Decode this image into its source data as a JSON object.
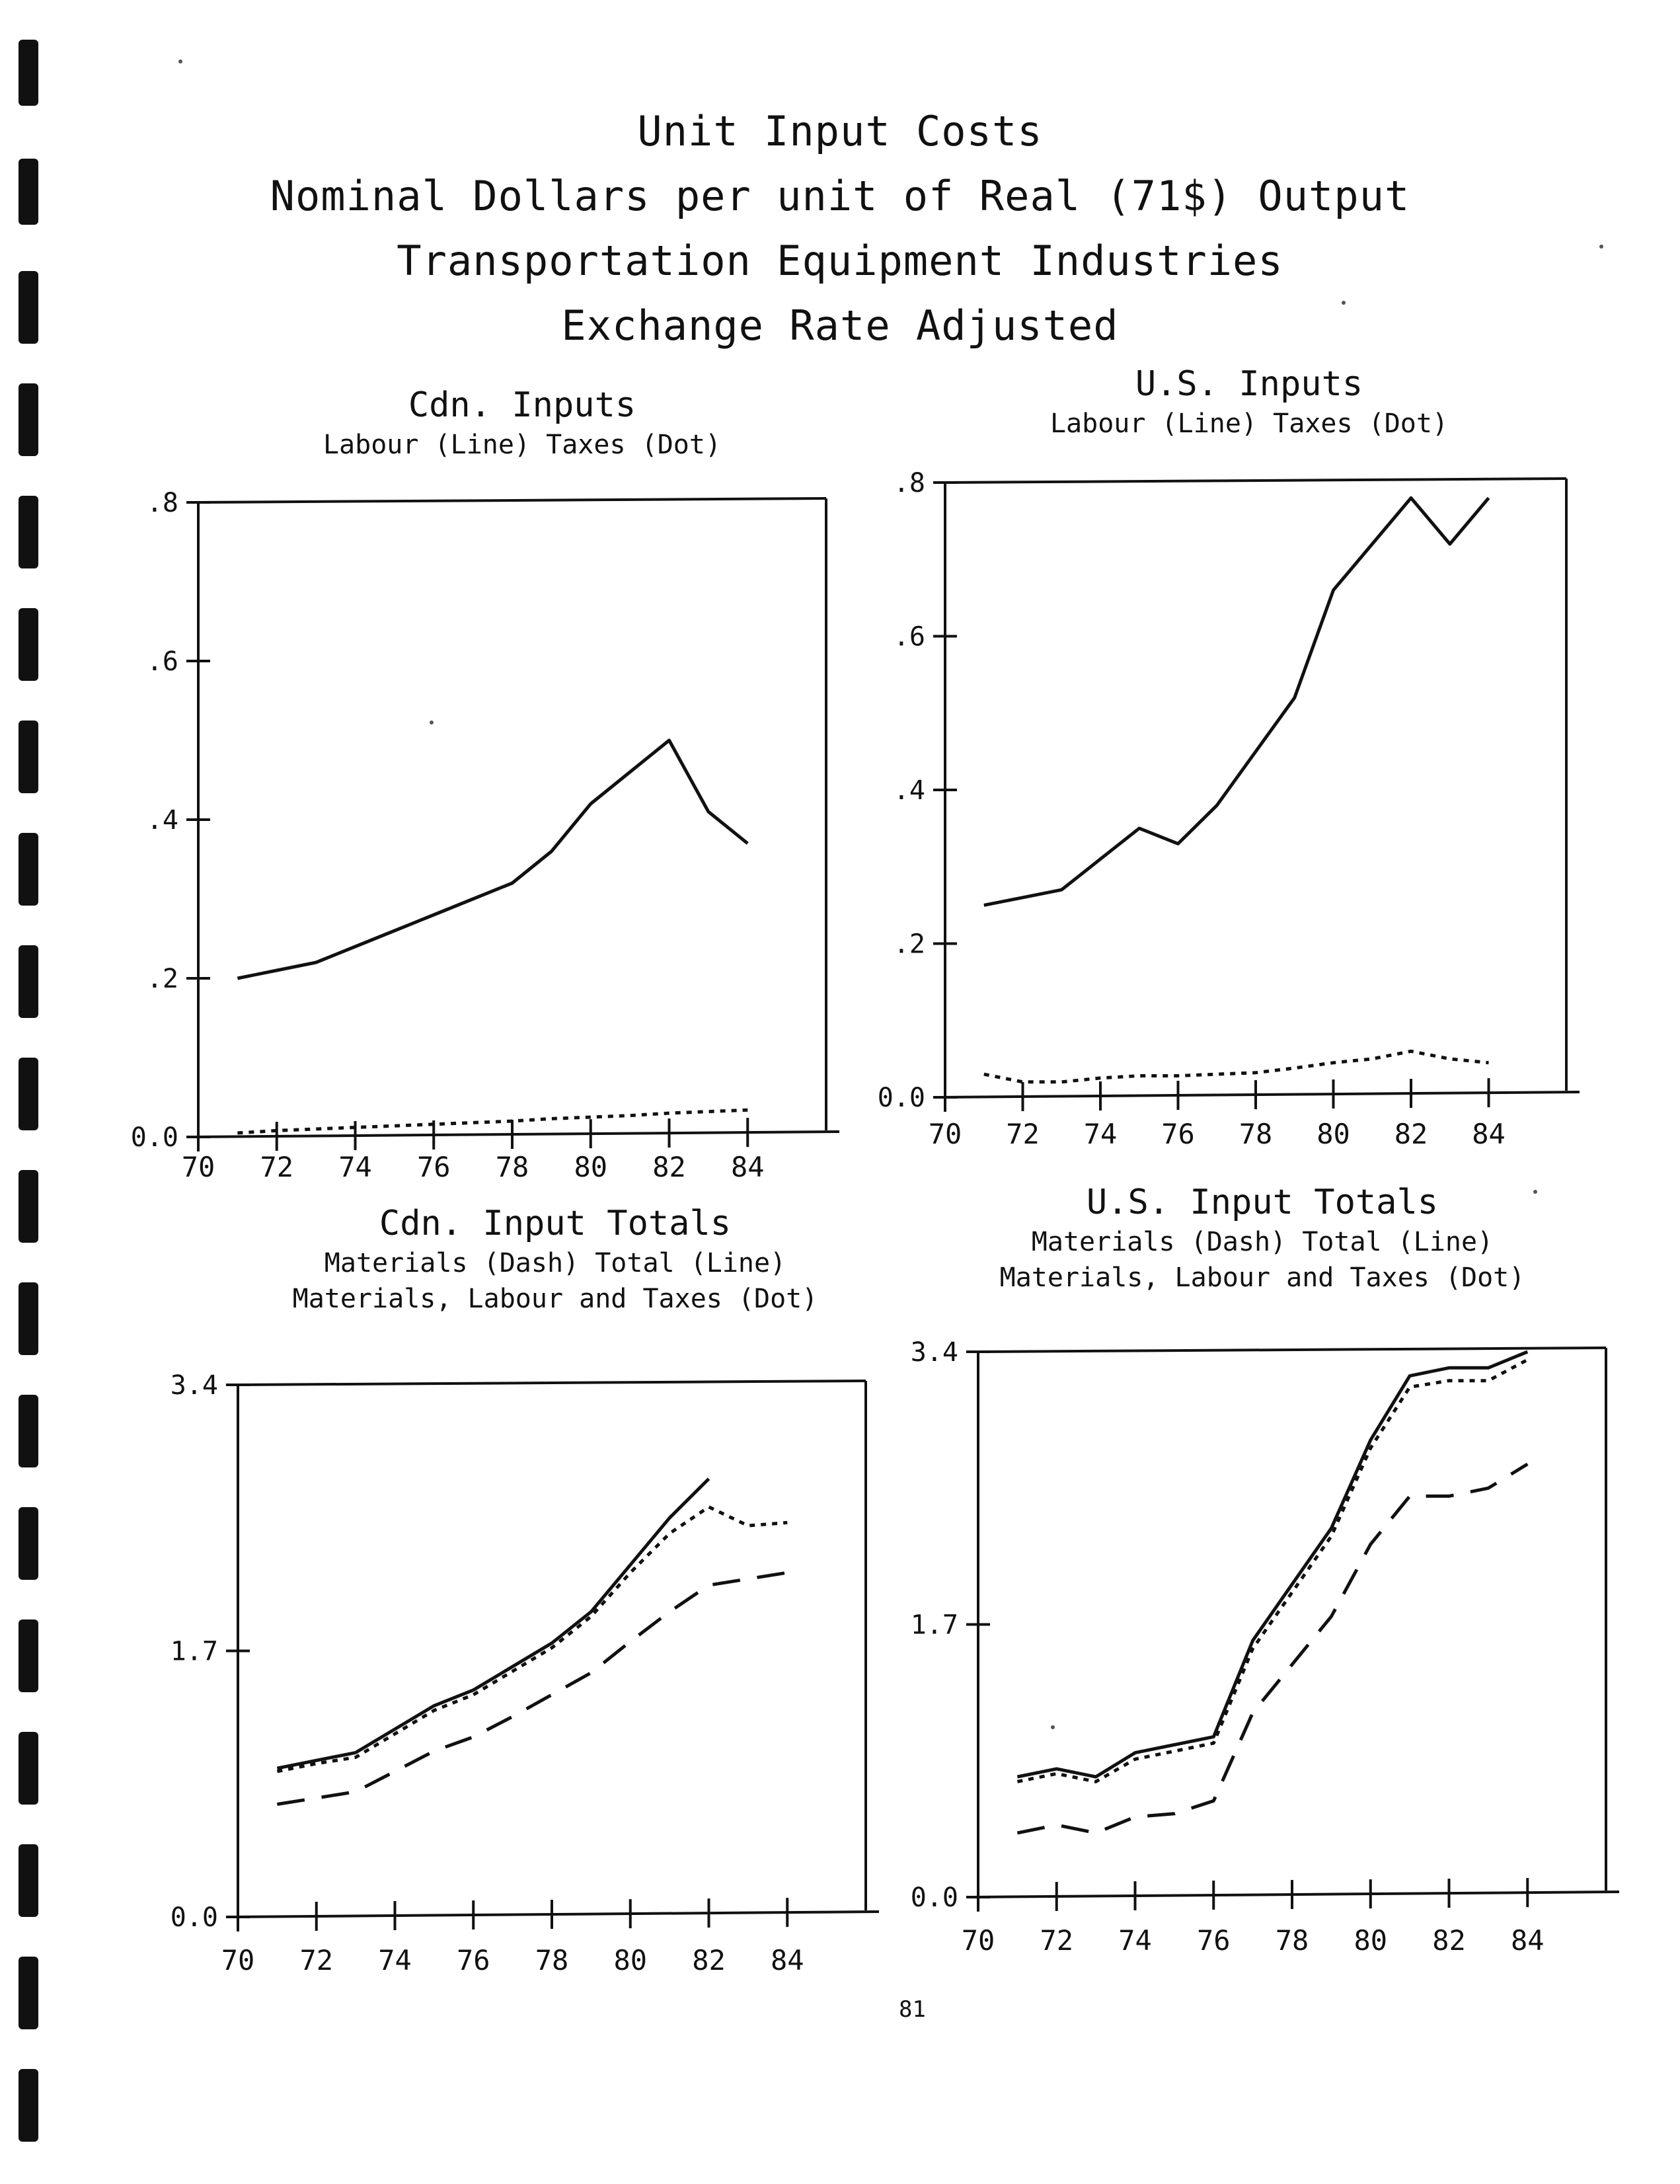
{
  "page": {
    "title_lines": [
      "Unit Input Costs",
      "Nominal Dollars per unit of Real (71$) Output",
      "Transportation Equipment Industries",
      "Exchange Rate Adjusted"
    ],
    "page_number": "81"
  },
  "chart_data": [
    {
      "type": "line",
      "title": "Cdn. Inputs",
      "subtitle": [
        "Labour (Line)  Taxes (Dot)"
      ],
      "xlabel": "",
      "ylabel": "",
      "xlim": [
        70,
        86
      ],
      "ylim": [
        0,
        0.8
      ],
      "x_ticks": [
        70,
        72,
        74,
        76,
        78,
        80,
        82,
        84
      ],
      "x_tick_labels": [
        "70",
        "72",
        "74",
        "76",
        "78",
        "80",
        "82",
        "84"
      ],
      "y_ticks": [
        0,
        0.2,
        0.4,
        0.6,
        0.8
      ],
      "y_tick_labels": [
        "0.0",
        ".2",
        ".4",
        ".6",
        ".8"
      ],
      "series": [
        {
          "name": "Labour",
          "style": "line",
          "x": [
            71,
            72,
            73,
            74,
            75,
            76,
            77,
            78,
            79,
            80,
            81,
            82,
            83,
            84
          ],
          "values": [
            0.2,
            0.21,
            0.22,
            0.24,
            0.26,
            0.28,
            0.3,
            0.32,
            0.36,
            0.42,
            0.46,
            0.5,
            0.41,
            0.37
          ]
        },
        {
          "name": "Taxes",
          "style": "dot",
          "x": [
            71,
            72,
            73,
            74,
            75,
            76,
            77,
            78,
            79,
            80,
            81,
            82,
            83,
            84
          ],
          "values": [
            0.005,
            0.008,
            0.01,
            0.012,
            0.014,
            0.016,
            0.018,
            0.02,
            0.023,
            0.025,
            0.027,
            0.03,
            0.032,
            0.034
          ]
        }
      ]
    },
    {
      "type": "line",
      "title": "U.S. Inputs",
      "subtitle": [
        "Labour (Line)  Taxes (Dot)"
      ],
      "xlabel": "",
      "ylabel": "",
      "xlim": [
        70,
        86
      ],
      "ylim": [
        0,
        0.8
      ],
      "x_ticks": [
        70,
        72,
        74,
        76,
        78,
        80,
        82,
        84
      ],
      "x_tick_labels": [
        "70",
        "72",
        "74",
        "76",
        "78",
        "80",
        "82",
        "84"
      ],
      "y_ticks": [
        0,
        0.2,
        0.4,
        0.6,
        0.8
      ],
      "y_tick_labels": [
        "0.0",
        ".2",
        ".4",
        ".6",
        ".8"
      ],
      "series": [
        {
          "name": "Labour",
          "style": "line",
          "x": [
            71,
            72,
            73,
            74,
            75,
            76,
            77,
            78,
            79,
            80,
            81,
            82,
            83,
            84
          ],
          "values": [
            0.25,
            0.26,
            0.27,
            0.31,
            0.35,
            0.33,
            0.38,
            0.45,
            0.52,
            0.66,
            0.72,
            0.78,
            0.72,
            0.78
          ]
        },
        {
          "name": "Taxes",
          "style": "dot",
          "x": [
            71,
            72,
            73,
            74,
            75,
            76,
            77,
            78,
            79,
            80,
            81,
            82,
            83,
            84
          ],
          "values": [
            0.03,
            0.02,
            0.02,
            0.025,
            0.028,
            0.028,
            0.03,
            0.032,
            0.038,
            0.045,
            0.05,
            0.06,
            0.05,
            0.045
          ]
        }
      ]
    },
    {
      "type": "line",
      "title": "Cdn. Input Totals",
      "subtitle": [
        "Materials (Dash)   Total (Line)",
        "Materials, Labour and Taxes (Dot)"
      ],
      "xlabel": "",
      "ylabel": "",
      "xlim": [
        70,
        86
      ],
      "ylim": [
        0,
        3.4
      ],
      "x_ticks": [
        70,
        72,
        74,
        76,
        78,
        80,
        82,
        84
      ],
      "x_tick_labels": [
        "70",
        "72",
        "74",
        "76",
        "78",
        "80",
        "82",
        "84"
      ],
      "y_ticks": [
        0,
        1.7,
        3.4
      ],
      "y_tick_labels": [
        "0.0",
        "1.7",
        "3.4"
      ],
      "series": [
        {
          "name": "Total",
          "style": "line",
          "x": [
            71,
            72,
            73,
            74,
            75,
            76,
            77,
            78,
            79,
            80,
            81,
            82
          ],
          "values": [
            0.95,
            1.0,
            1.05,
            1.2,
            1.35,
            1.45,
            1.6,
            1.75,
            1.95,
            2.25,
            2.55,
            2.8
          ]
        },
        {
          "name": "Materials, Labour and Taxes",
          "style": "dot",
          "x": [
            71,
            72,
            73,
            74,
            75,
            76,
            77,
            78,
            79,
            80,
            81,
            82,
            83,
            84
          ],
          "values": [
            0.93,
            0.98,
            1.02,
            1.17,
            1.32,
            1.42,
            1.57,
            1.72,
            1.92,
            2.2,
            2.45,
            2.62,
            2.5,
            2.52
          ]
        },
        {
          "name": "Materials",
          "style": "dash",
          "x": [
            71,
            72,
            73,
            74,
            75,
            76,
            77,
            78,
            79,
            80,
            81,
            82,
            83,
            84
          ],
          "values": [
            0.72,
            0.76,
            0.8,
            0.93,
            1.06,
            1.15,
            1.28,
            1.42,
            1.56,
            1.76,
            1.95,
            2.12,
            2.16,
            2.2
          ]
        }
      ]
    },
    {
      "type": "line",
      "title": "U.S. Input Totals",
      "subtitle": [
        "Materials (Dash)   Total (Line)",
        "Materials, Labour and Taxes (Dot)"
      ],
      "xlabel": "",
      "ylabel": "",
      "xlim": [
        70,
        86
      ],
      "ylim": [
        0,
        3.4
      ],
      "x_ticks": [
        70,
        72,
        74,
        76,
        78,
        80,
        82,
        84
      ],
      "x_tick_labels": [
        "70",
        "72",
        "74",
        "76",
        "78",
        "80",
        "82",
        "84"
      ],
      "y_ticks": [
        0,
        1.7,
        3.4
      ],
      "y_tick_labels": [
        "0.0",
        "1.7",
        "3.4"
      ],
      "series": [
        {
          "name": "Total",
          "style": "line",
          "x": [
            71,
            72,
            73,
            74,
            75,
            76,
            77,
            78,
            79,
            80,
            81,
            82,
            83,
            84
          ],
          "values": [
            0.75,
            0.8,
            0.75,
            0.9,
            0.95,
            1.0,
            1.6,
            1.95,
            2.3,
            2.85,
            3.25,
            3.3,
            3.3,
            3.4
          ]
        },
        {
          "name": "Materials, Labour and Taxes",
          "style": "dot",
          "x": [
            71,
            72,
            73,
            74,
            75,
            76,
            77,
            78,
            79,
            80,
            81,
            82,
            83,
            84
          ],
          "values": [
            0.72,
            0.77,
            0.72,
            0.86,
            0.91,
            0.96,
            1.55,
            1.9,
            2.25,
            2.8,
            3.18,
            3.22,
            3.22,
            3.35
          ]
        },
        {
          "name": "Materials",
          "style": "dash",
          "x": [
            71,
            72,
            73,
            74,
            75,
            76,
            77,
            78,
            79,
            80,
            81,
            82,
            83,
            84
          ],
          "values": [
            0.4,
            0.45,
            0.4,
            0.5,
            0.52,
            0.6,
            1.15,
            1.45,
            1.75,
            2.2,
            2.5,
            2.5,
            2.55,
            2.7
          ]
        }
      ]
    }
  ]
}
